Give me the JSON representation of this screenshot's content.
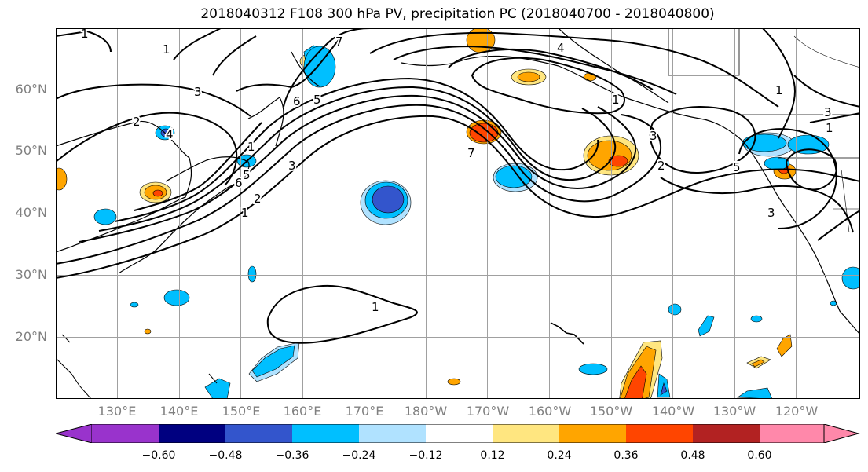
{
  "title": "2018040312 F108 300 hPa PV, precipitation PC (2018040700 - 2018040800)",
  "lat_labels": [
    "60°N",
    "50°N",
    "40°N",
    "30°N",
    "20°N"
  ],
  "lon_labels": [
    "130°E",
    "140°E",
    "150°E",
    "160°E",
    "170°E",
    "180°W",
    "170°W",
    "160°W",
    "150°W",
    "140°W",
    "130°W",
    "120°W"
  ],
  "colorbar": {
    "ticks": [
      "−0.60",
      "−0.48",
      "−0.36",
      "−0.24",
      "−0.12",
      "0.12",
      "0.24",
      "0.36",
      "0.48",
      "0.60"
    ],
    "colors": [
      "#9933cc",
      "#000080",
      "#3355cc",
      "#00bfff",
      "#b0e2ff",
      "#ffffff",
      "#ffe680",
      "#ffa500",
      "#ff4500",
      "#b22222",
      "#ff88aa"
    ]
  },
  "contour_labels": {
    "pv_1_nw": "1",
    "pv_1_nw2": "1",
    "pv_3_nw": "3",
    "pv_2_w": "2",
    "pv_4_w": "4",
    "pv_1_japan": "1",
    "pv_6_japan": "6",
    "pv_5_japan": "5",
    "pv_3_japan": "3",
    "pv_1_sw": "1",
    "pv_2_sw": "2",
    "pv_7_n": "7",
    "pv_6_n": "6",
    "pv_5_n": "5",
    "pv_7_mid": "7",
    "pv_4_top": "4",
    "pv_1_ak": "1",
    "pv_3_gulf": "3",
    "pv_2_gulf": "2",
    "pv_5_coast": "5",
    "pv_3_coast": "3",
    "pv_1_coast": "1",
    "pv_1_ne": "1",
    "pv_3_ne": "3",
    "pv_1_sub": "1"
  }
}
